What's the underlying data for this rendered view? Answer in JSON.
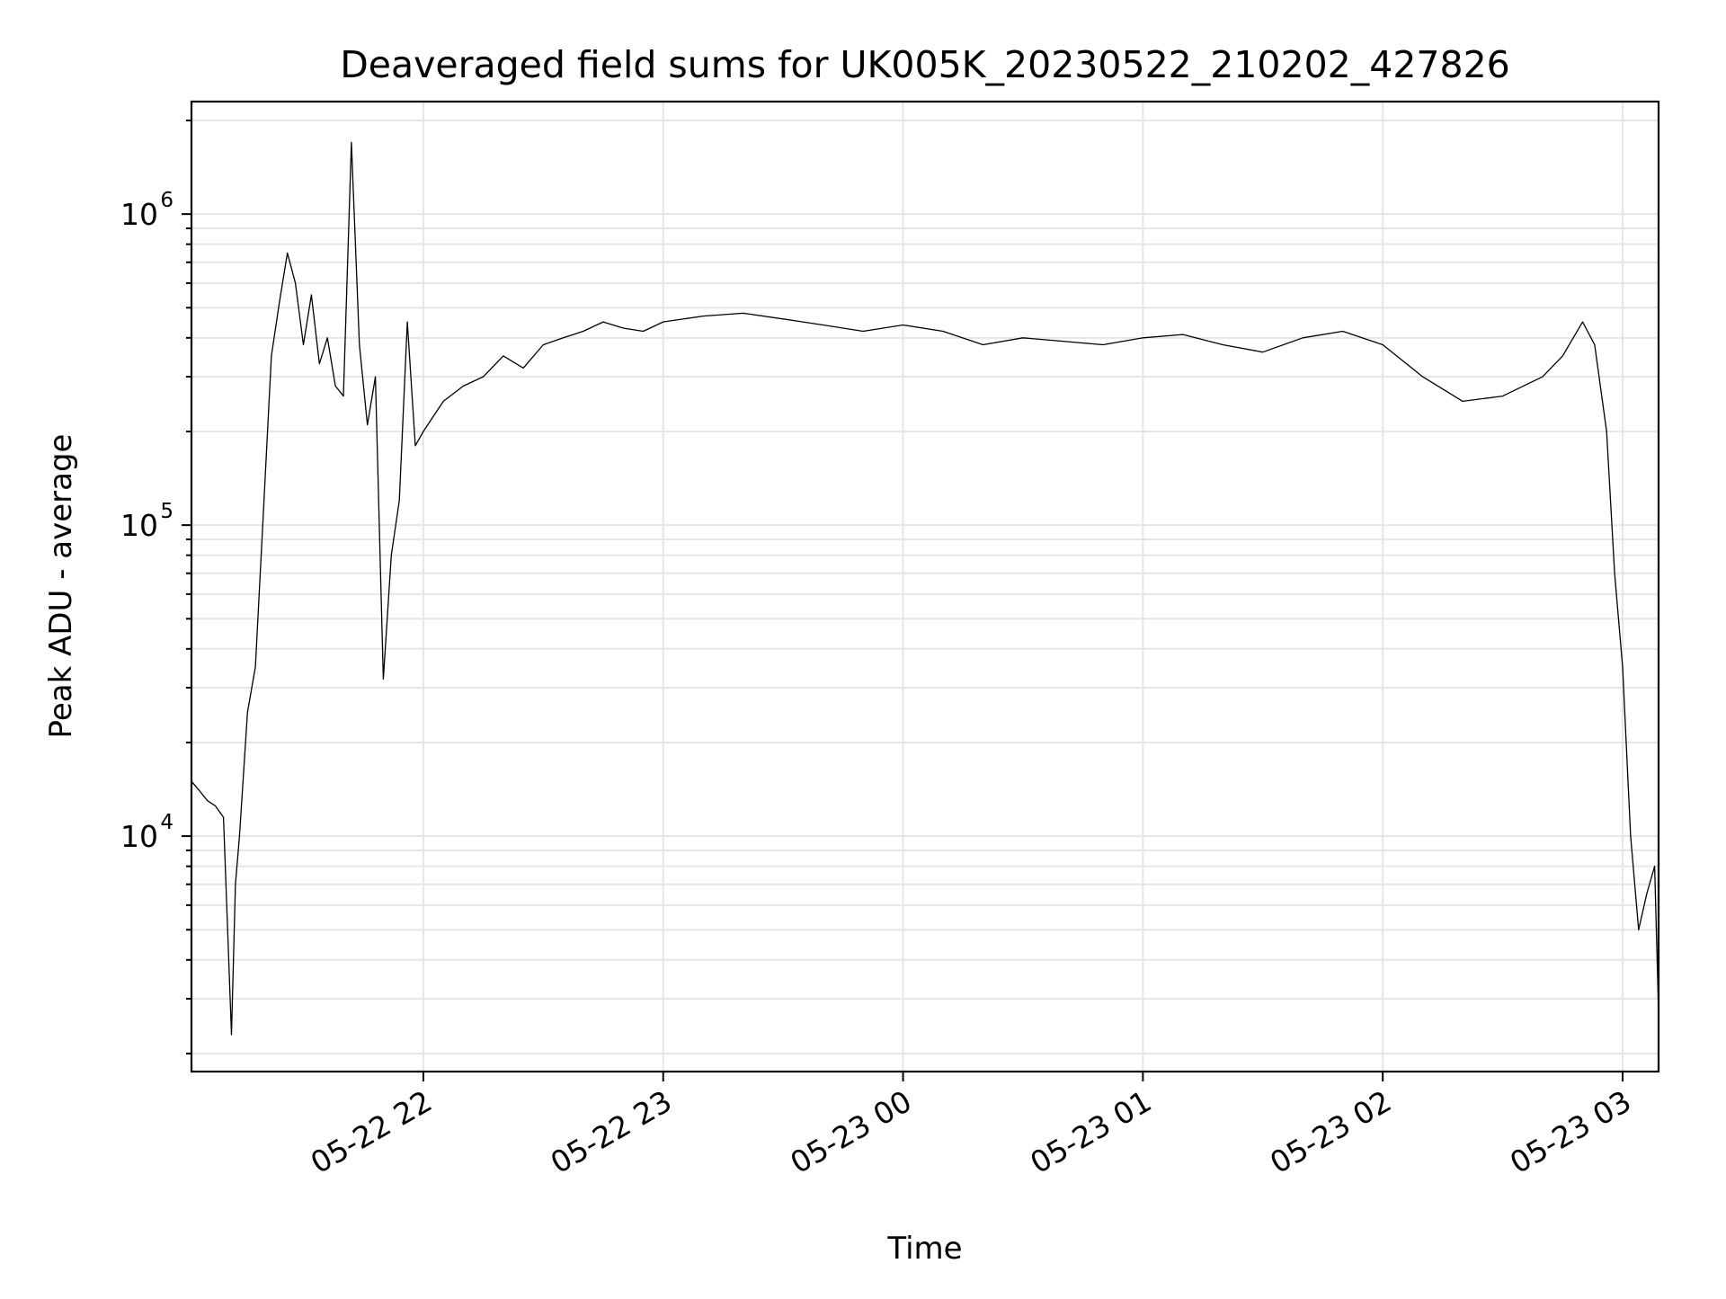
{
  "chart_data": {
    "type": "line",
    "title": "Deaveraged field sums for UK005K_20230522_210202_427826",
    "xlabel": "Time",
    "ylabel": "Peak ADU - average",
    "yscale": "log",
    "xlim": [
      "2023-05-22 21:02",
      "2023-05-23 03:09"
    ],
    "ylim": [
      1750,
      2300000
    ],
    "grid": true,
    "xticks": [
      {
        "t": "2023-05-22 22:00",
        "label": "05-22 22"
      },
      {
        "t": "2023-05-22 23:00",
        "label": "05-22 23"
      },
      {
        "t": "2023-05-23 00:00",
        "label": "05-23 00"
      },
      {
        "t": "2023-05-23 01:00",
        "label": "05-23 01"
      },
      {
        "t": "2023-05-23 02:00",
        "label": "05-23 02"
      },
      {
        "t": "2023-05-23 03:00",
        "label": "05-23 03"
      }
    ],
    "yticks": [
      {
        "value": 10000,
        "base": "10",
        "exp": "4"
      },
      {
        "value": 100000,
        "base": "10",
        "exp": "5"
      },
      {
        "value": 1000000,
        "base": "10",
        "exp": "6"
      }
    ],
    "series": [
      {
        "color": "#000000",
        "x": [
          "2023-05-22 21:02",
          "2023-05-22 21:04",
          "2023-05-22 21:06",
          "2023-05-22 21:08",
          "2023-05-22 21:10",
          "2023-05-22 21:12",
          "2023-05-22 21:13",
          "2023-05-22 21:14",
          "2023-05-22 21:16",
          "2023-05-22 21:18",
          "2023-05-22 21:20",
          "2023-05-22 21:22",
          "2023-05-22 21:24",
          "2023-05-22 21:26",
          "2023-05-22 21:28",
          "2023-05-22 21:30",
          "2023-05-22 21:32",
          "2023-05-22 21:34",
          "2023-05-22 21:36",
          "2023-05-22 21:38",
          "2023-05-22 21:40",
          "2023-05-22 21:42",
          "2023-05-22 21:44",
          "2023-05-22 21:46",
          "2023-05-22 21:48",
          "2023-05-22 21:50",
          "2023-05-22 21:52",
          "2023-05-22 21:54",
          "2023-05-22 21:56",
          "2023-05-22 21:58",
          "2023-05-22 22:00",
          "2023-05-22 22:05",
          "2023-05-22 22:10",
          "2023-05-22 22:15",
          "2023-05-22 22:20",
          "2023-05-22 22:25",
          "2023-05-22 22:30",
          "2023-05-22 22:35",
          "2023-05-22 22:40",
          "2023-05-22 22:45",
          "2023-05-22 22:50",
          "2023-05-22 22:55",
          "2023-05-22 23:00",
          "2023-05-22 23:10",
          "2023-05-22 23:20",
          "2023-05-22 23:30",
          "2023-05-22 23:40",
          "2023-05-22 23:50",
          "2023-05-23 00:00",
          "2023-05-23 00:10",
          "2023-05-23 00:20",
          "2023-05-23 00:30",
          "2023-05-23 00:40",
          "2023-05-23 00:50",
          "2023-05-23 01:00",
          "2023-05-23 01:10",
          "2023-05-23 01:20",
          "2023-05-23 01:30",
          "2023-05-23 01:40",
          "2023-05-23 01:50",
          "2023-05-23 02:00",
          "2023-05-23 02:10",
          "2023-05-23 02:20",
          "2023-05-23 02:30",
          "2023-05-23 02:40",
          "2023-05-23 02:45",
          "2023-05-23 02:50",
          "2023-05-23 02:53",
          "2023-05-23 02:56",
          "2023-05-23 02:58",
          "2023-05-23 03:00",
          "2023-05-23 03:02",
          "2023-05-23 03:04",
          "2023-05-23 03:06",
          "2023-05-23 03:08",
          "2023-05-23 03:09"
        ],
        "y": [
          15000,
          14000,
          13000,
          12500,
          11500,
          2300,
          7000,
          10000,
          25000,
          35000,
          110000,
          350000,
          520000,
          750000,
          600000,
          380000,
          550000,
          330000,
          400000,
          280000,
          260000,
          1700000,
          380000,
          210000,
          300000,
          32000,
          80000,
          120000,
          450000,
          180000,
          200000,
          250000,
          280000,
          300000,
          350000,
          320000,
          380000,
          400000,
          420000,
          450000,
          430000,
          420000,
          450000,
          470000,
          480000,
          460000,
          440000,
          420000,
          440000,
          420000,
          380000,
          400000,
          390000,
          380000,
          400000,
          410000,
          380000,
          360000,
          400000,
          420000,
          380000,
          300000,
          250000,
          260000,
          300000,
          350000,
          450000,
          380000,
          200000,
          70000,
          35000,
          10000,
          5000,
          6500,
          8000,
          2700
        ]
      }
    ]
  }
}
